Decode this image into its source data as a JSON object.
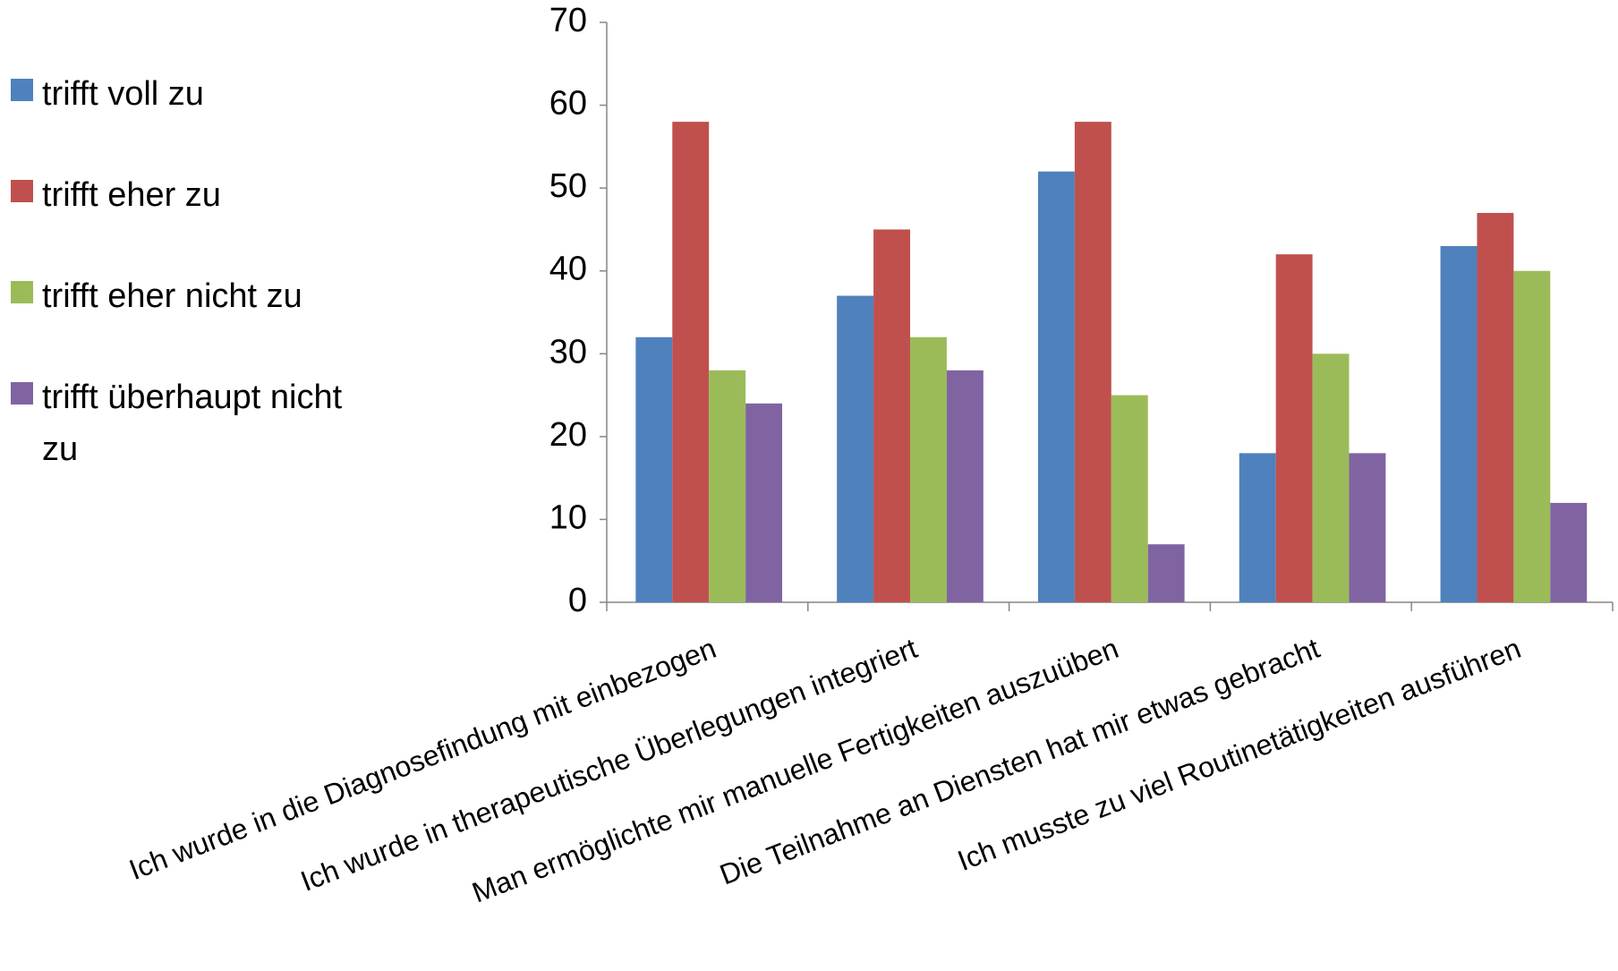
{
  "chart_data": {
    "type": "bar",
    "categories": [
      "Ich wurde in die Diagnosefindung mit einbezogen",
      "Ich wurde in therapeutische Überlegungen integriert",
      "Man ermöglichte mir manuelle Fertigkeiten auszuüben",
      "Die Teilnahme an Diensten hat mir etwas gebracht",
      "Ich musste zu viel Routinetätigkeiten ausführen"
    ],
    "series": [
      {
        "name": "trifft voll zu",
        "color": "#4f81bd",
        "values": [
          32,
          37,
          52,
          18,
          43
        ]
      },
      {
        "name": "trifft eher zu",
        "color": "#c0504d",
        "values": [
          58,
          45,
          58,
          42,
          47
        ]
      },
      {
        "name": "trifft eher nicht zu",
        "color": "#9bbb59",
        "values": [
          28,
          32,
          25,
          30,
          40
        ]
      },
      {
        "name": "trifft überhaupt nicht zu",
        "color": "#8064a2",
        "values": [
          24,
          28,
          7,
          18,
          12
        ]
      }
    ],
    "ylim": [
      0,
      70
    ],
    "yticks": [
      0,
      10,
      20,
      30,
      40,
      50,
      60,
      70
    ],
    "grid": false,
    "legend": "left"
  }
}
